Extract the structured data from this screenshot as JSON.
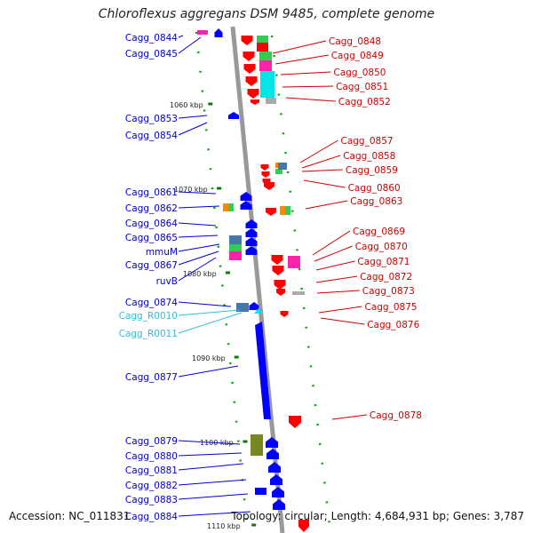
{
  "title": "Chloroflexus aggregans DSM 9485, complete genome",
  "accession": "Accession: NC_011831",
  "summary": "Topology: circular; Length: 4,684,931 bp; Genes: 3,787",
  "colors": {
    "forward_cds": "#0000ff",
    "reverse_cds": "#ff0000",
    "rna_label": "#33bbdd",
    "backbone": "#999999",
    "gc_skew_dots": "#00aa00",
    "cog_cyan": "#00e5e5",
    "cog_magenta": "#ff22aa",
    "cog_green": "#33cc55",
    "cog_orange": "#ff8800",
    "cog_olive": "#778822",
    "cog_steelblue": "#4477aa",
    "cog_gray": "#aaaaaa"
  },
  "kbp_markers": [
    "1060 kbp",
    "1070 kbp",
    "1080 kbp",
    "1090 kbp",
    "1100 kbp",
    "1110 kbp"
  ],
  "left_labels": [
    {
      "text": "Cagg_0844",
      "type": "cds"
    },
    {
      "text": "Cagg_0845",
      "type": "cds"
    },
    {
      "text": "Cagg_0853",
      "type": "cds"
    },
    {
      "text": "Cagg_0854",
      "type": "cds"
    },
    {
      "text": "Cagg_0861",
      "type": "cds"
    },
    {
      "text": "Cagg_0862",
      "type": "cds"
    },
    {
      "text": "Cagg_0864",
      "type": "cds"
    },
    {
      "text": "Cagg_0865",
      "type": "cds"
    },
    {
      "text": "mmuM",
      "type": "cds"
    },
    {
      "text": "Cagg_0867",
      "type": "cds"
    },
    {
      "text": "ruvB",
      "type": "cds"
    },
    {
      "text": "Cagg_0874",
      "type": "cds"
    },
    {
      "text": "Cagg_R0010",
      "type": "rna"
    },
    {
      "text": "Cagg_R0011",
      "type": "rna"
    },
    {
      "text": "Cagg_0877",
      "type": "cds"
    },
    {
      "text": "Cagg_0879",
      "type": "cds"
    },
    {
      "text": "Cagg_0880",
      "type": "cds"
    },
    {
      "text": "Cagg_0881",
      "type": "cds"
    },
    {
      "text": "Cagg_0882",
      "type": "cds"
    },
    {
      "text": "Cagg_0883",
      "type": "cds"
    },
    {
      "text": "Cagg_0884",
      "type": "cds"
    }
  ],
  "right_labels": [
    {
      "text": "Cagg_0848"
    },
    {
      "text": "Cagg_0849"
    },
    {
      "text": "Cagg_0850"
    },
    {
      "text": "Cagg_0851"
    },
    {
      "text": "Cagg_0852"
    },
    {
      "text": "Cagg_0857"
    },
    {
      "text": "Cagg_0858"
    },
    {
      "text": "Cagg_0859"
    },
    {
      "text": "Cagg_0860"
    },
    {
      "text": "Cagg_0863"
    },
    {
      "text": "Cagg_0869"
    },
    {
      "text": "Cagg_0870"
    },
    {
      "text": "Cagg_0871"
    },
    {
      "text": "Cagg_0872"
    },
    {
      "text": "Cagg_0873"
    },
    {
      "text": "Cagg_0875"
    },
    {
      "text": "Cagg_0876"
    },
    {
      "text": "Cagg_0878"
    }
  ]
}
